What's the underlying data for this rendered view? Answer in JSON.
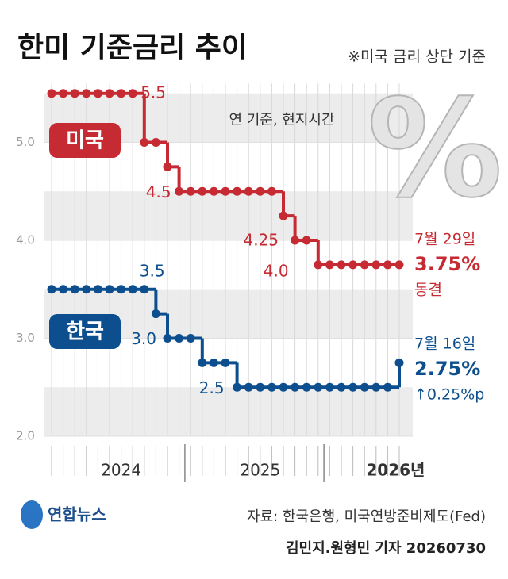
{
  "chart_data": {
    "type": "step-line",
    "title": "한미 기준금리 추이",
    "subtitle": "※미국 금리 상단 기준",
    "note": "연 기준, 현지시간",
    "watermark": "%",
    "categories": [
      null,
      null,
      null,
      null,
      null,
      null,
      "2024",
      null,
      null,
      null,
      null,
      null,
      null,
      null,
      null,
      null,
      null,
      null,
      "2025",
      null,
      null,
      null,
      null,
      null,
      null,
      null,
      null,
      null,
      null,
      "2026년",
      null
    ],
    "ylim": [
      2,
      5.6
    ],
    "yticks": [
      {
        "value": 2,
        "label": "2.0"
      },
      {
        "value": 3,
        "label": "3.0"
      },
      {
        "value": 4,
        "label": "4.0"
      },
      {
        "value": 5,
        "label": "5.0"
      }
    ],
    "series": [
      {
        "name": "미국",
        "color": "#c62a32",
        "values": [
          5.5,
          5.5,
          5.5,
          5.5,
          5.5,
          5.5,
          5.5,
          5.5,
          5.0,
          5.0,
          4.75,
          4.5,
          4.5,
          4.5,
          4.5,
          4.5,
          4.5,
          4.5,
          4.5,
          4.5,
          4.25,
          4.0,
          4.0,
          3.75,
          3.75,
          3.75,
          3.75,
          3.75,
          3.75,
          3.75,
          3.75
        ],
        "value_labels": [
          null,
          null,
          null,
          null,
          null,
          null,
          null,
          "5.5",
          null,
          null,
          null,
          "4.5",
          null,
          null,
          null,
          null,
          null,
          null,
          null,
          null,
          "4.25",
          "4.0",
          null,
          null,
          null,
          null,
          null,
          null,
          null,
          null,
          null
        ],
        "end_labels": [
          "7월 29일",
          "3.75%",
          "동결"
        ]
      },
      {
        "name": "한국",
        "color": "#0d4f8e",
        "values": [
          3.5,
          3.5,
          3.5,
          3.5,
          3.5,
          3.5,
          3.5,
          3.5,
          3.5,
          3.25,
          3.0,
          3.0,
          3.0,
          2.75,
          2.75,
          2.75,
          2.5,
          2.5,
          2.5,
          2.5,
          2.5,
          2.5,
          2.5,
          2.5,
          2.5,
          2.5,
          2.5,
          2.5,
          2.5,
          2.5,
          2.75
        ],
        "value_labels": [
          null,
          null,
          null,
          null,
          null,
          null,
          null,
          null,
          "3.5",
          null,
          "3.0",
          null,
          null,
          null,
          null,
          null,
          "2.5",
          null,
          null,
          null,
          null,
          null,
          null,
          null,
          null,
          null,
          null,
          null,
          null,
          null,
          null
        ],
        "end_labels": [
          "7월 16일",
          "2.75%",
          "↑0.25%p"
        ]
      }
    ]
  },
  "footer": {
    "logo": "연합뉴스",
    "source": "자료: 한국은행, 미국연방준비제도(Fed)",
    "credit": "김민지.원형민 기자 20260730"
  }
}
